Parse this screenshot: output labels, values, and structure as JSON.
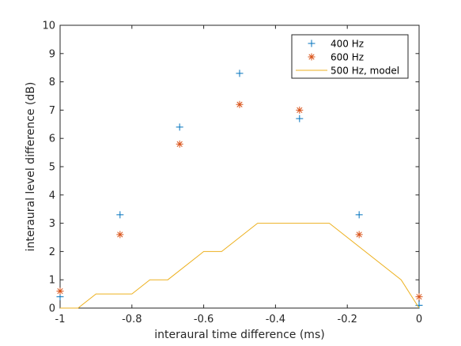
{
  "chart_data": {
    "type": "scatter",
    "xlabel": "interaural time difference (ms)",
    "ylabel": "interaural level difference (dB)",
    "xlim": [
      -1,
      0
    ],
    "ylim": [
      0,
      10
    ],
    "x_ticks": [
      "-1",
      "-0.8",
      "-0.6",
      "-0.4",
      "-0.2",
      "0"
    ],
    "y_ticks": [
      "0",
      "1",
      "2",
      "3",
      "4",
      "5",
      "6",
      "7",
      "8",
      "9",
      "10"
    ],
    "grid": false,
    "legend_position": "top-right",
    "series": [
      {
        "name": "400 Hz",
        "marker": "plus",
        "color": "#0072BD",
        "points": [
          {
            "x": -1.0,
            "y": 0.4
          },
          {
            "x": -0.833,
            "y": 3.3
          },
          {
            "x": -0.667,
            "y": 6.4
          },
          {
            "x": -0.5,
            "y": 8.3
          },
          {
            "x": -0.333,
            "y": 6.7
          },
          {
            "x": -0.167,
            "y": 3.3
          },
          {
            "x": 0.0,
            "y": 0.1
          }
        ]
      },
      {
        "name": "600 Hz",
        "marker": "asterisk",
        "color": "#D95319",
        "points": [
          {
            "x": -1.0,
            "y": 0.6
          },
          {
            "x": -0.833,
            "y": 2.6
          },
          {
            "x": -0.667,
            "y": 5.8
          },
          {
            "x": -0.5,
            "y": 7.2
          },
          {
            "x": -0.333,
            "y": 7.0
          },
          {
            "x": -0.167,
            "y": 2.6
          },
          {
            "x": 0.0,
            "y": 0.4
          }
        ]
      },
      {
        "name": "500 Hz, model",
        "marker": "line",
        "color": "#EDB120",
        "points": [
          {
            "x": -1.0,
            "y": 0.0
          },
          {
            "x": -0.95,
            "y": 0.0
          },
          {
            "x": -0.9,
            "y": 0.5
          },
          {
            "x": -0.85,
            "y": 0.5
          },
          {
            "x": -0.8,
            "y": 0.5
          },
          {
            "x": -0.75,
            "y": 1.0
          },
          {
            "x": -0.7,
            "y": 1.0
          },
          {
            "x": -0.6,
            "y": 2.0
          },
          {
            "x": -0.55,
            "y": 2.0
          },
          {
            "x": -0.45,
            "y": 3.0
          },
          {
            "x": -0.25,
            "y": 3.0
          },
          {
            "x": -0.05,
            "y": 1.0
          },
          {
            "x": 0.0,
            "y": 0.0
          }
        ]
      }
    ]
  }
}
